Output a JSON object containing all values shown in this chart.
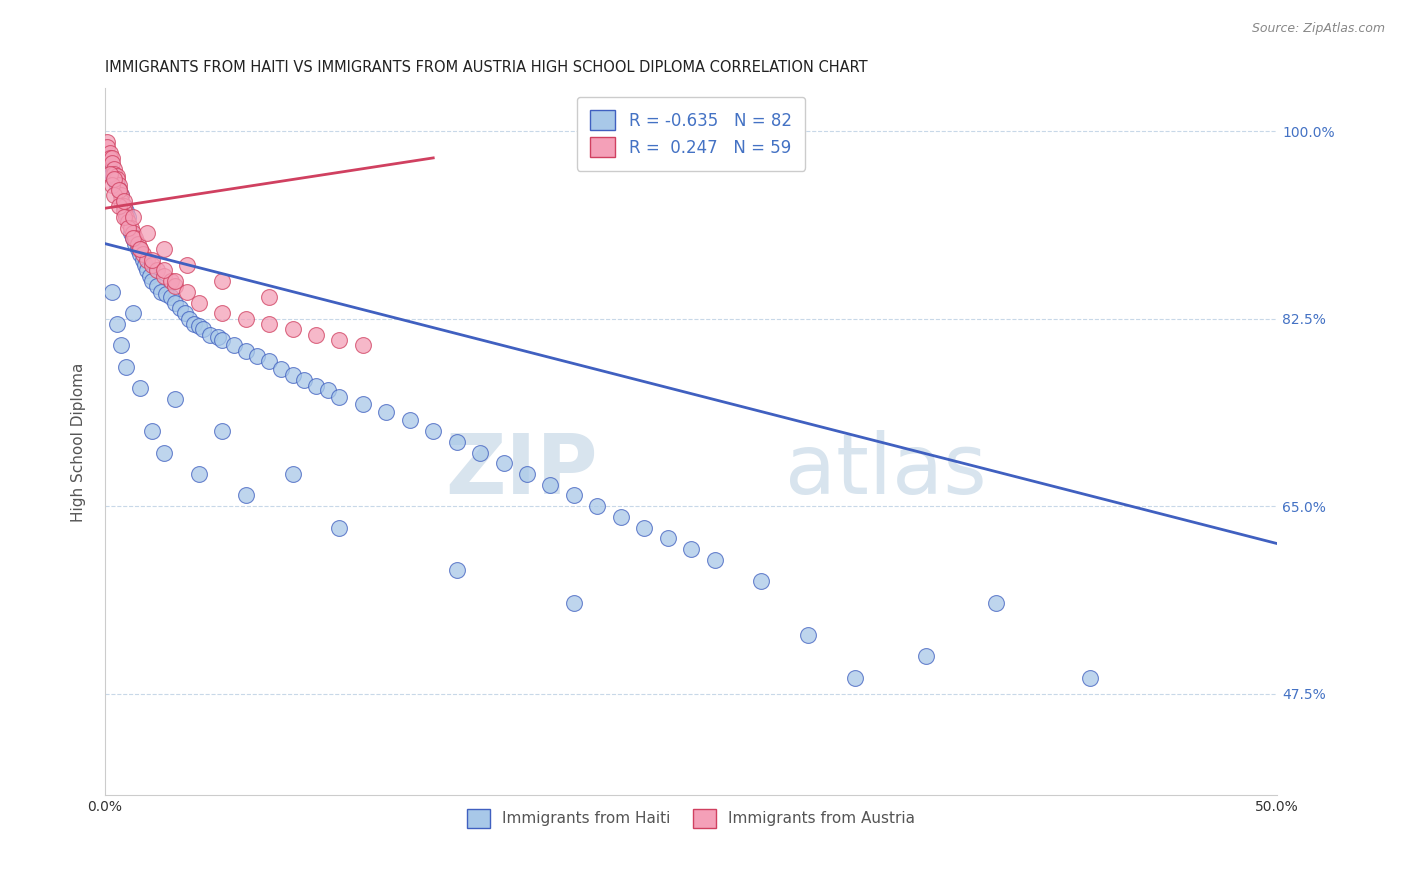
{
  "title": "IMMIGRANTS FROM HAITI VS IMMIGRANTS FROM AUSTRIA HIGH SCHOOL DIPLOMA CORRELATION CHART",
  "source": "Source: ZipAtlas.com",
  "ylabel": "High School Diploma",
  "xlim": [
    0.0,
    0.5
  ],
  "ylim": [
    0.38,
    1.04
  ],
  "xtick_vals": [
    0.0,
    0.1,
    0.2,
    0.3,
    0.4,
    0.5
  ],
  "xtick_labels": [
    "0.0%",
    "",
    "",
    "",
    "",
    "50.0%"
  ],
  "ytick_vals_right": [
    1.0,
    0.825,
    0.65,
    0.475
  ],
  "ytick_labels_right": [
    "100.0%",
    "82.5%",
    "65.0%",
    "47.5%"
  ],
  "haiti_R": -0.635,
  "haiti_N": 82,
  "austria_R": 0.247,
  "austria_N": 59,
  "haiti_color": "#a8c8e8",
  "austria_color": "#f4a0b8",
  "haiti_line_color": "#4060c0",
  "austria_line_color": "#d04060",
  "background_color": "#ffffff",
  "grid_color": "#c8d8e8",
  "watermark": "ZIPatlas",
  "watermark_color": "#d0dce8",
  "haiti_x": [
    0.001,
    0.002,
    0.003,
    0.004,
    0.005,
    0.006,
    0.007,
    0.008,
    0.009,
    0.01,
    0.011,
    0.012,
    0.013,
    0.014,
    0.015,
    0.016,
    0.017,
    0.018,
    0.019,
    0.02,
    0.022,
    0.024,
    0.026,
    0.028,
    0.03,
    0.032,
    0.034,
    0.036,
    0.038,
    0.04,
    0.042,
    0.045,
    0.048,
    0.05,
    0.055,
    0.06,
    0.065,
    0.07,
    0.075,
    0.08,
    0.085,
    0.09,
    0.095,
    0.1,
    0.11,
    0.12,
    0.13,
    0.14,
    0.15,
    0.16,
    0.17,
    0.18,
    0.19,
    0.2,
    0.21,
    0.22,
    0.23,
    0.24,
    0.25,
    0.26,
    0.003,
    0.005,
    0.007,
    0.009,
    0.012,
    0.015,
    0.02,
    0.025,
    0.03,
    0.04,
    0.05,
    0.06,
    0.08,
    0.1,
    0.15,
    0.2,
    0.3,
    0.35,
    0.28,
    0.32,
    0.38,
    0.42
  ],
  "haiti_y": [
    0.975,
    0.965,
    0.96,
    0.955,
    0.95,
    0.945,
    0.94,
    0.93,
    0.925,
    0.92,
    0.905,
    0.9,
    0.895,
    0.89,
    0.885,
    0.88,
    0.875,
    0.87,
    0.865,
    0.86,
    0.855,
    0.85,
    0.848,
    0.845,
    0.84,
    0.835,
    0.83,
    0.825,
    0.82,
    0.818,
    0.815,
    0.81,
    0.808,
    0.805,
    0.8,
    0.795,
    0.79,
    0.785,
    0.778,
    0.772,
    0.768,
    0.762,
    0.758,
    0.752,
    0.745,
    0.738,
    0.73,
    0.72,
    0.71,
    0.7,
    0.69,
    0.68,
    0.67,
    0.66,
    0.65,
    0.64,
    0.63,
    0.62,
    0.61,
    0.6,
    0.85,
    0.82,
    0.8,
    0.78,
    0.83,
    0.76,
    0.72,
    0.7,
    0.75,
    0.68,
    0.72,
    0.66,
    0.68,
    0.63,
    0.59,
    0.56,
    0.53,
    0.51,
    0.58,
    0.49,
    0.56,
    0.49
  ],
  "austria_x": [
    0.001,
    0.001,
    0.002,
    0.002,
    0.003,
    0.003,
    0.004,
    0.004,
    0.005,
    0.005,
    0.006,
    0.006,
    0.007,
    0.007,
    0.008,
    0.008,
    0.009,
    0.01,
    0.011,
    0.012,
    0.013,
    0.014,
    0.015,
    0.016,
    0.018,
    0.02,
    0.022,
    0.025,
    0.028,
    0.03,
    0.002,
    0.003,
    0.004,
    0.006,
    0.008,
    0.01,
    0.012,
    0.015,
    0.02,
    0.025,
    0.03,
    0.035,
    0.04,
    0.05,
    0.06,
    0.07,
    0.08,
    0.09,
    0.1,
    0.11,
    0.004,
    0.006,
    0.008,
    0.012,
    0.018,
    0.025,
    0.035,
    0.05,
    0.07
  ],
  "austria_y": [
    0.99,
    0.985,
    0.98,
    0.975,
    0.975,
    0.97,
    0.965,
    0.96,
    0.958,
    0.955,
    0.95,
    0.945,
    0.94,
    0.935,
    0.93,
    0.925,
    0.92,
    0.915,
    0.91,
    0.905,
    0.9,
    0.895,
    0.89,
    0.885,
    0.88,
    0.875,
    0.87,
    0.865,
    0.86,
    0.855,
    0.96,
    0.95,
    0.94,
    0.93,
    0.92,
    0.91,
    0.9,
    0.89,
    0.88,
    0.87,
    0.86,
    0.85,
    0.84,
    0.83,
    0.825,
    0.82,
    0.815,
    0.81,
    0.805,
    0.8,
    0.955,
    0.945,
    0.935,
    0.92,
    0.905,
    0.89,
    0.875,
    0.86,
    0.845
  ]
}
